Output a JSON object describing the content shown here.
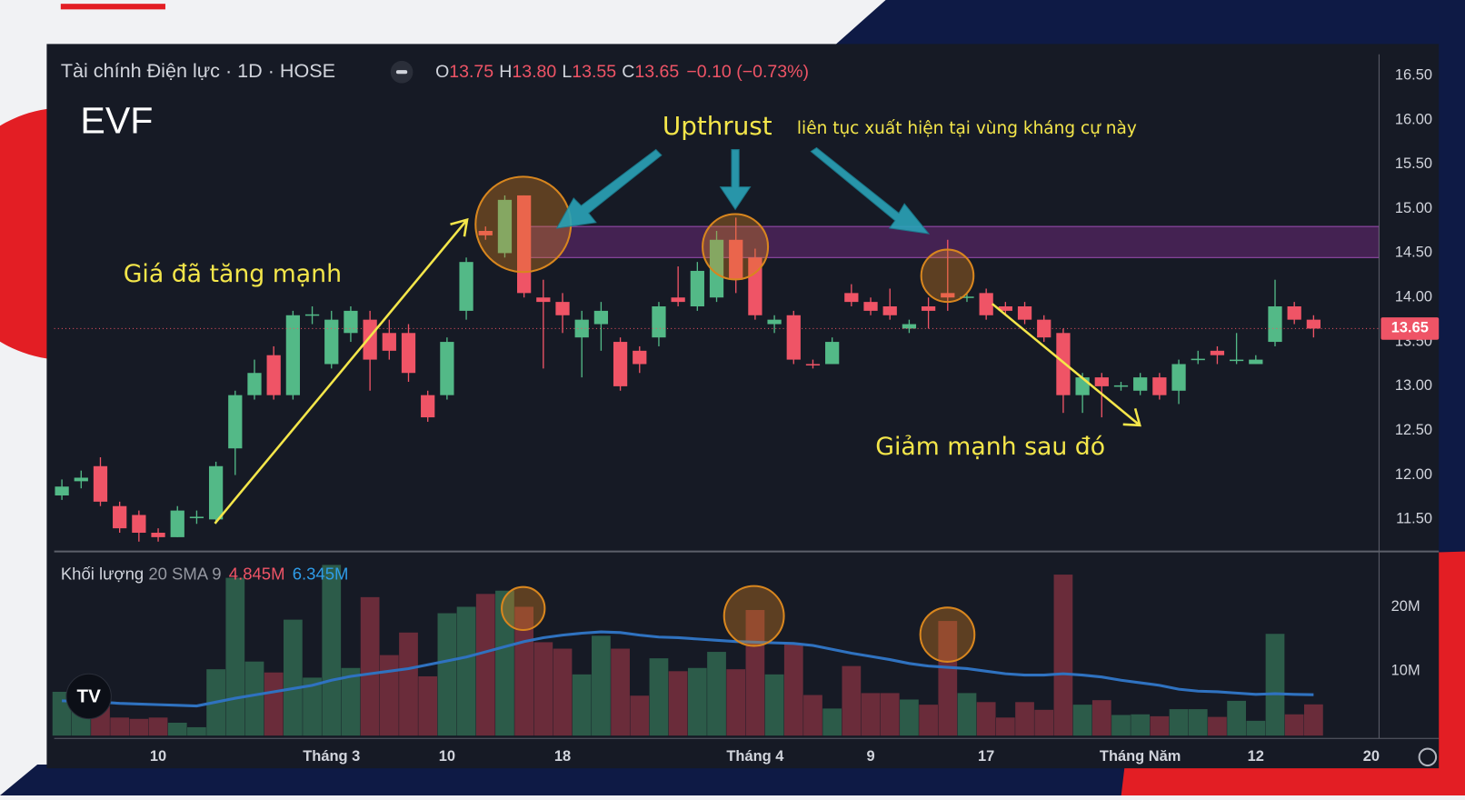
{
  "chart_data": {
    "type": "candlestick",
    "header": {
      "symbol": "Tài chính Điện lực · 1D · HOSE",
      "ohlc": [
        {
          "key": "O",
          "value": "13.75"
        },
        {
          "key": "H",
          "value": "13.80"
        },
        {
          "key": "L",
          "value": "13.55"
        },
        {
          "key": "C",
          "value": "13.65"
        }
      ],
      "change": "−0.10 (−0.73%)"
    },
    "ticker": "EVF",
    "annotations": {
      "upthrust": "Upthrust",
      "resistance_note": "liên tục xuất hiện tại vùng kháng cự này",
      "rise": "Giá đã tăng mạnh",
      "fall": "Giảm mạnh sau đó"
    },
    "resistance_zone": [
      14.45,
      14.8
    ],
    "open": [
      11.77,
      11.93,
      12.1,
      11.65,
      11.55,
      11.35,
      11.3,
      11.52,
      11.5,
      12.3,
      12.9,
      13.35,
      12.9,
      13.8,
      13.25,
      13.6,
      13.75,
      13.6,
      13.6,
      12.9,
      12.9,
      13.85,
      14.75,
      14.5,
      15.15,
      14.0,
      13.95,
      13.55,
      13.7,
      13.5,
      13.4,
      13.55,
      14.0,
      13.9,
      14.0,
      14.65,
      14.45,
      13.7,
      13.8,
      13.25,
      13.25,
      14.05,
      13.95,
      13.9,
      13.65,
      13.9,
      14.05,
      14.0,
      14.05,
      13.9,
      13.9,
      13.75,
      13.6,
      12.9,
      13.1,
      13.0,
      12.95,
      13.1,
      12.95,
      13.3,
      13.4,
      13.3,
      13.25,
      13.5,
      13.9,
      13.75
    ],
    "high": [
      11.95,
      12.05,
      12.2,
      11.7,
      11.6,
      11.4,
      11.65,
      11.6,
      12.15,
      12.95,
      13.3,
      13.45,
      13.85,
      13.9,
      13.85,
      13.9,
      13.85,
      13.75,
      13.7,
      12.95,
      13.55,
      14.45,
      14.8,
      15.15,
      15.15,
      14.2,
      14.05,
      13.85,
      13.95,
      13.55,
      13.45,
      13.95,
      14.35,
      14.4,
      14.75,
      14.9,
      14.55,
      13.8,
      13.85,
      13.3,
      13.55,
      14.15,
      14.0,
      14.1,
      13.75,
      14.0,
      14.65,
      14.05,
      14.1,
      13.95,
      13.95,
      13.8,
      13.65,
      13.15,
      13.15,
      13.05,
      13.15,
      13.15,
      13.3,
      13.4,
      13.45,
      13.6,
      13.35,
      14.2,
      13.95,
      13.8
    ],
    "low": [
      11.72,
      11.85,
      11.65,
      11.35,
      11.25,
      11.25,
      11.3,
      11.45,
      11.45,
      12.0,
      12.85,
      12.85,
      12.85,
      13.7,
      13.2,
      13.5,
      12.95,
      13.3,
      13.05,
      12.6,
      12.85,
      13.75,
      14.65,
      14.45,
      14.0,
      13.2,
      13.6,
      13.1,
      13.4,
      12.95,
      13.15,
      13.45,
      13.9,
      13.85,
      13.95,
      14.05,
      13.75,
      13.6,
      13.25,
      13.2,
      13.25,
      13.9,
      13.8,
      13.75,
      13.6,
      13.65,
      13.85,
      13.95,
      13.75,
      13.8,
      13.7,
      13.5,
      12.7,
      12.7,
      12.65,
      12.95,
      12.9,
      12.85,
      12.8,
      13.25,
      13.25,
      13.25,
      13.25,
      13.45,
      13.7,
      13.55
    ],
    "close": [
      11.87,
      11.97,
      11.7,
      11.4,
      11.35,
      11.3,
      11.6,
      11.53,
      12.1,
      12.9,
      13.15,
      12.9,
      13.8,
      13.81,
      13.75,
      13.85,
      13.3,
      13.4,
      13.15,
      12.65,
      13.5,
      14.4,
      14.7,
      15.1,
      14.05,
      13.95,
      13.8,
      13.75,
      13.85,
      13.0,
      13.25,
      13.9,
      13.95,
      14.3,
      14.65,
      14.2,
      13.8,
      13.75,
      13.3,
      13.24,
      13.5,
      13.95,
      13.85,
      13.8,
      13.7,
      13.85,
      14.0,
      14.01,
      13.8,
      13.85,
      13.75,
      13.55,
      12.9,
      13.1,
      13.0,
      13.01,
      13.1,
      12.9,
      13.25,
      13.31,
      13.35,
      13.3,
      13.3,
      13.9,
      13.75,
      13.65
    ],
    "volume_legend": {
      "name": "Khối lượng",
      "length": "20",
      "sma": "SMA 9",
      "volume": "4.845M",
      "sma_value": "6.345M"
    },
    "volume": [
      6.8,
      4.8,
      4.6,
      2.8,
      2.6,
      2.8,
      2.0,
      1.3,
      10.3,
      24.5,
      11.5,
      9.8,
      18,
      9,
      26.5,
      10.5,
      21.5,
      12.5,
      16,
      9.2,
      19,
      20,
      22,
      22.5,
      20,
      14.5,
      13.5,
      9.5,
      15.5,
      13.5,
      6.2,
      12,
      10,
      10.5,
      13,
      10.3,
      19.5,
      9.5,
      14.2,
      6.3,
      4.2,
      10.8,
      6.6,
      6.6,
      5.6,
      4.8,
      17.8,
      6.6,
      5.2,
      2.8,
      5.2,
      4.0,
      25,
      4.8,
      5.5,
      3.2,
      3.3,
      3.0,
      4.1,
      4.1,
      2.9,
      5.4,
      2.3,
      15.8,
      3.3,
      4.845
    ],
    "volume_sma": [
      5.4,
      5.3,
      5.2,
      5.0,
      4.9,
      4.8,
      4.7,
      4.6,
      5.2,
      5.8,
      6.3,
      6.8,
      7.3,
      7.8,
      8.6,
      9.2,
      9.6,
      10.0,
      10.4,
      11.0,
      11.6,
      12.2,
      13.0,
      13.8,
      14.6,
      15.2,
      15.6,
      15.9,
      16.1,
      16.0,
      15.6,
      15.3,
      15.2,
      15.0,
      14.8,
      14.6,
      14.5,
      14.4,
      14.3,
      14.0,
      13.4,
      12.8,
      12.3,
      11.8,
      11.2,
      10.8,
      10.6,
      10.4,
      10.0,
      9.6,
      9.4,
      9.4,
      9.6,
      9.4,
      9.1,
      8.6,
      8.2,
      7.8,
      7.2,
      6.9,
      6.8,
      6.6,
      6.4,
      6.5,
      6.4,
      6.345
    ],
    "xlim": [
      -0.4,
      68.4
    ],
    "xticks": [
      {
        "value": 5,
        "label": "10"
      },
      {
        "value": 14,
        "label": "Tháng 3"
      },
      {
        "value": 20,
        "label": "10"
      },
      {
        "value": 26,
        "label": "18"
      },
      {
        "value": 36,
        "label": "Tháng 4"
      },
      {
        "value": 42,
        "label": "9"
      },
      {
        "value": 48,
        "label": "17"
      },
      {
        "value": 56,
        "label": "Tháng Năm"
      },
      {
        "value": 62,
        "label": "12"
      },
      {
        "value": 68,
        "label": "20"
      }
    ],
    "ylim": [
      11.16,
      16.74
    ],
    "yticks": [
      {
        "value": 11.5,
        "label": "11.50"
      },
      {
        "value": 12,
        "label": "12.00"
      },
      {
        "value": 12.5,
        "label": "12.50"
      },
      {
        "value": 13,
        "label": "13.00"
      },
      {
        "value": 13.5,
        "label": "13.50"
      },
      {
        "value": 14,
        "label": "14.00"
      },
      {
        "value": 14.5,
        "label": "14.50"
      },
      {
        "value": 15,
        "label": "15.00"
      },
      {
        "value": 15.5,
        "label": "15.50"
      },
      {
        "value": 16,
        "label": "16.00"
      },
      {
        "value": 16.5,
        "label": "16.50"
      }
    ],
    "volume_ylim": [
      0,
      28.3
    ],
    "volume_yticks": [
      {
        "value": 10,
        "label": "10M"
      },
      {
        "value": 20,
        "label": "20M"
      }
    ],
    "grid": true,
    "colors": {
      "up": "#53b987",
      "down": "#ef5466",
      "up_volume": "#2c5b49",
      "down_volume": "#6a2c3a",
      "sma": "#2f72c0",
      "zone": "#6b2a78"
    }
  }
}
